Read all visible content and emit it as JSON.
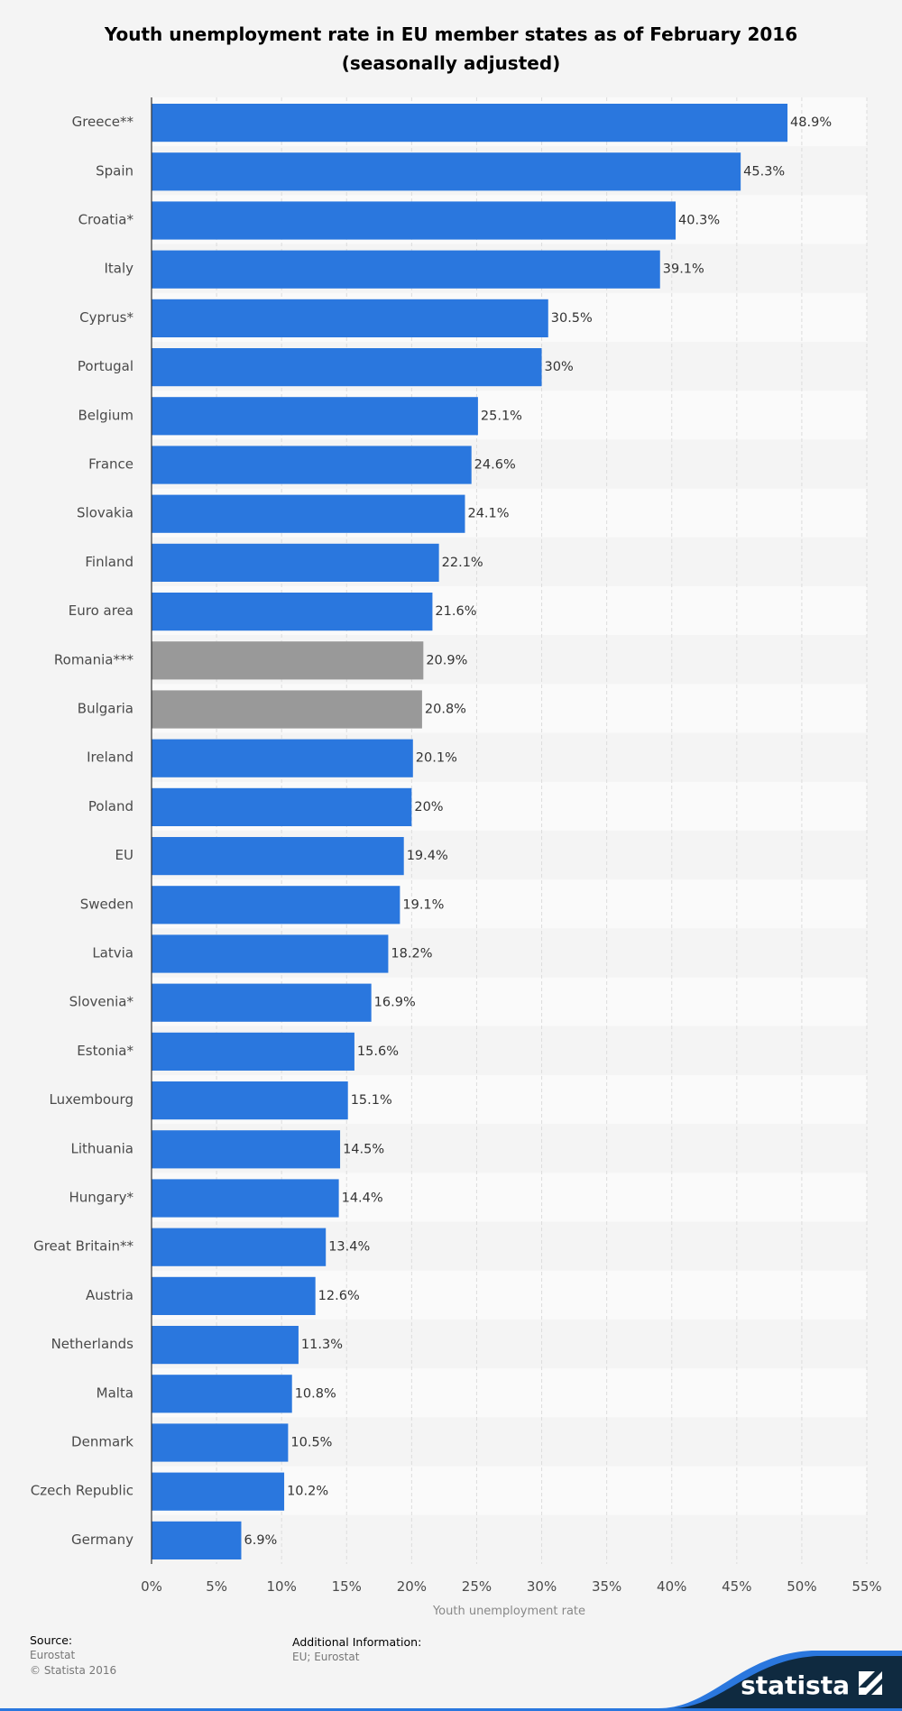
{
  "title_line1": "Youth unemployment rate in EU member states as of February 2016",
  "title_line2": "(seasonally adjusted)",
  "footer": {
    "source_heading": "Source:",
    "source_lines": [
      "Eurostat",
      "© Statista 2016"
    ],
    "additional_heading": "Additional Information:",
    "additional_text": "EU; Eurostat",
    "brand": "statista"
  },
  "colors": {
    "bar": "#2a77de",
    "bar_highlight": "#999999",
    "band_even": "#fafafa",
    "band_odd": "#f4f4f4",
    "brand_dark": "#0f2a40",
    "brand_accent": "#2a77de"
  },
  "chart_data": {
    "type": "bar",
    "orientation": "horizontal",
    "categories": [
      "Greece**",
      "Spain",
      "Croatia*",
      "Italy",
      "Cyprus*",
      "Portugal",
      "Belgium",
      "France",
      "Slovakia",
      "Finland",
      "Euro area",
      "Romania***",
      "Bulgaria",
      "Ireland",
      "Poland",
      "EU",
      "Sweden",
      "Latvia",
      "Slovenia*",
      "Estonia*",
      "Luxembourg",
      "Lithuania",
      "Hungary*",
      "Great Britain**",
      "Austria",
      "Netherlands",
      "Malta",
      "Denmark",
      "Czech Republic",
      "Germany"
    ],
    "values": [
      48.9,
      45.3,
      40.3,
      39.1,
      30.5,
      30,
      25.1,
      24.6,
      24.1,
      22.1,
      21.6,
      20.9,
      20.8,
      20.1,
      20,
      19.4,
      19.1,
      18.2,
      16.9,
      15.6,
      15.1,
      14.5,
      14.4,
      13.4,
      12.6,
      11.3,
      10.8,
      10.5,
      10.2,
      6.9
    ],
    "value_labels": [
      "48.9%",
      "45.3%",
      "40.3%",
      "39.1%",
      "30.5%",
      "30%",
      "25.1%",
      "24.6%",
      "24.1%",
      "22.1%",
      "21.6%",
      "20.9%",
      "20.8%",
      "20.1%",
      "20%",
      "19.4%",
      "19.1%",
      "18.2%",
      "16.9%",
      "15.6%",
      "15.1%",
      "14.5%",
      "14.4%",
      "13.4%",
      "12.6%",
      "11.3%",
      "10.8%",
      "10.5%",
      "10.2%",
      "6.9%"
    ],
    "highlighted": [
      "Romania***",
      "Bulgaria"
    ],
    "xlabel": "Youth unemployment rate",
    "xlim": [
      0,
      55
    ],
    "xticks": [
      0,
      5,
      10,
      15,
      20,
      25,
      30,
      35,
      40,
      45,
      50,
      55
    ],
    "xtick_labels": [
      "0%",
      "5%",
      "10%",
      "15%",
      "20%",
      "25%",
      "30%",
      "35%",
      "40%",
      "45%",
      "50%",
      "55%"
    ],
    "grid": true,
    "legend": "none"
  }
}
